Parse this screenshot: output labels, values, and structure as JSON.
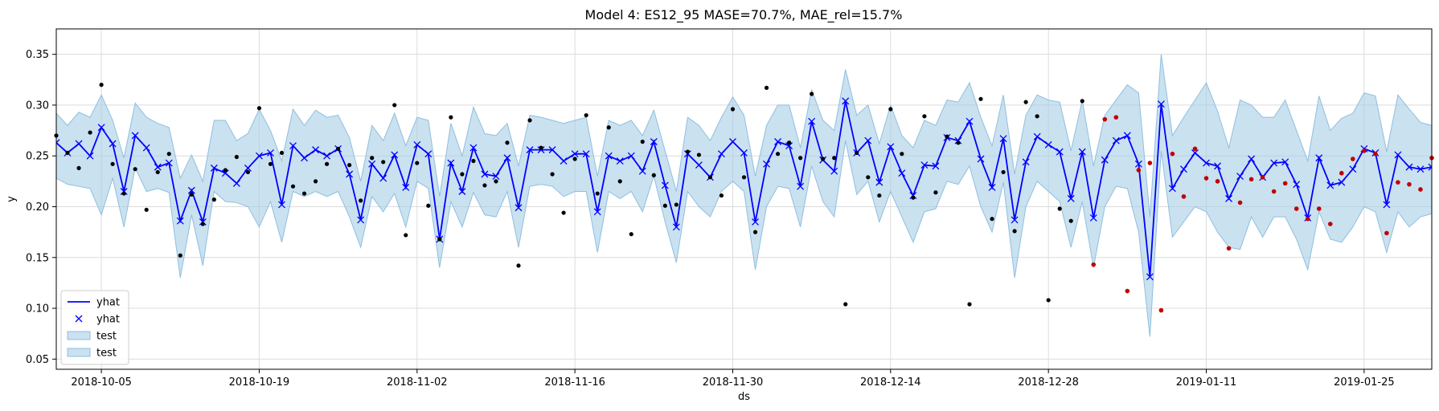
{
  "chart_data": {
    "type": "line",
    "title": "Model 4: ES12_95 MASE=70.7%, MAE_rel=15.7%",
    "xlabel": "ds",
    "ylabel": "y",
    "xlim": [
      "2018-10-01",
      "2019-01-31"
    ],
    "ylim": [
      0.04,
      0.375
    ],
    "x_ticks": [
      "2018-10-05",
      "2018-10-19",
      "2018-11-02",
      "2018-11-16",
      "2018-11-30",
      "2018-12-14",
      "2018-12-28",
      "2019-01-11",
      "2019-01-25"
    ],
    "y_ticks": [
      "0.05",
      "0.10",
      "0.15",
      "0.20",
      "0.25",
      "0.30",
      "0.35"
    ],
    "grid": true,
    "legend_position": "bottom-left",
    "colors": {
      "yhat": "#0000ff",
      "band": "#a6cde6",
      "band_edge": "#8fbfdf",
      "actual": "#000000",
      "test_actual": "#c00000"
    },
    "forecast_start": "2018-10-01",
    "yhat": [
      0.263,
      0.253,
      0.262,
      0.25,
      0.278,
      0.262,
      0.215,
      0.27,
      0.258,
      0.239,
      0.243,
      0.186,
      0.216,
      0.185,
      0.238,
      0.233,
      0.223,
      0.238,
      0.25,
      0.253,
      0.202,
      0.26,
      0.248,
      0.256,
      0.25,
      0.257,
      0.232,
      0.187,
      0.242,
      0.228,
      0.251,
      0.219,
      0.261,
      0.252,
      0.168,
      0.243,
      0.215,
      0.258,
      0.232,
      0.23,
      0.248,
      0.199,
      0.256,
      0.256,
      0.256,
      0.245,
      0.252,
      0.252,
      0.195,
      0.25,
      0.245,
      0.25,
      0.235,
      0.264,
      0.221,
      0.18,
      0.252,
      0.241,
      0.229,
      0.252,
      0.264,
      0.253,
      0.185,
      0.242,
      0.264,
      0.26,
      0.22,
      0.284,
      0.246,
      0.235,
      0.304,
      0.253,
      0.265,
      0.224,
      0.259,
      0.233,
      0.211,
      0.241,
      0.24,
      0.268,
      0.265,
      0.284,
      0.247,
      0.219,
      0.267,
      0.187,
      0.244,
      0.269,
      0.261,
      0.254,
      0.208,
      0.254,
      0.189,
      0.246,
      0.265,
      0.27,
      0.242,
      0.131,
      0.301,
      0.218,
      0.237,
      0.253,
      0.243,
      0.24,
      0.208,
      0.23,
      0.247,
      0.229,
      0.243,
      0.244,
      0.222,
      0.189,
      0.248,
      0.221,
      0.224,
      0.237,
      0.257,
      0.253,
      0.202,
      0.251,
      0.239,
      0.237,
      0.239
    ],
    "band_upper": [
      0.292,
      0.28,
      0.293,
      0.288,
      0.31,
      0.285,
      0.248,
      0.302,
      0.288,
      0.282,
      0.278,
      0.228,
      0.251,
      0.225,
      0.285,
      0.285,
      0.265,
      0.272,
      0.296,
      0.275,
      0.245,
      0.296,
      0.28,
      0.295,
      0.288,
      0.29,
      0.268,
      0.225,
      0.28,
      0.265,
      0.292,
      0.26,
      0.288,
      0.285,
      0.21,
      0.282,
      0.25,
      0.298,
      0.272,
      0.27,
      0.282,
      0.24,
      0.29,
      0.288,
      0.285,
      0.282,
      0.285,
      0.288,
      0.23,
      0.285,
      0.28,
      0.285,
      0.27,
      0.295,
      0.255,
      0.215,
      0.288,
      0.28,
      0.265,
      0.288,
      0.308,
      0.29,
      0.23,
      0.28,
      0.3,
      0.3,
      0.258,
      0.315,
      0.285,
      0.275,
      0.335,
      0.29,
      0.3,
      0.262,
      0.3,
      0.27,
      0.258,
      0.285,
      0.28,
      0.305,
      0.303,
      0.322,
      0.288,
      0.26,
      0.31,
      0.232,
      0.29,
      0.31,
      0.305,
      0.303,
      0.255,
      0.305,
      0.24,
      0.29,
      0.305,
      0.32,
      0.312,
      0.19,
      0.35,
      0.27,
      0.288,
      0.305,
      0.322,
      0.294,
      0.258,
      0.305,
      0.3,
      0.288,
      0.288,
      0.305,
      0.275,
      0.245,
      0.309,
      0.275,
      0.287,
      0.292,
      0.312,
      0.309,
      0.254,
      0.31,
      0.296,
      0.283,
      0.28
    ],
    "band_lower": [
      0.228,
      0.222,
      0.22,
      0.218,
      0.192,
      0.228,
      0.18,
      0.238,
      0.215,
      0.218,
      0.214,
      0.13,
      0.192,
      0.142,
      0.215,
      0.205,
      0.204,
      0.2,
      0.18,
      0.205,
      0.165,
      0.215,
      0.21,
      0.215,
      0.21,
      0.215,
      0.19,
      0.16,
      0.21,
      0.195,
      0.213,
      0.18,
      0.225,
      0.218,
      0.14,
      0.205,
      0.18,
      0.214,
      0.192,
      0.19,
      0.215,
      0.16,
      0.22,
      0.222,
      0.22,
      0.21,
      0.215,
      0.215,
      0.155,
      0.215,
      0.208,
      0.215,
      0.195,
      0.23,
      0.185,
      0.145,
      0.215,
      0.2,
      0.19,
      0.215,
      0.225,
      0.215,
      0.138,
      0.2,
      0.22,
      0.218,
      0.18,
      0.24,
      0.205,
      0.19,
      0.265,
      0.212,
      0.225,
      0.185,
      0.215,
      0.19,
      0.165,
      0.195,
      0.198,
      0.225,
      0.222,
      0.24,
      0.2,
      0.175,
      0.224,
      0.13,
      0.2,
      0.225,
      0.215,
      0.205,
      0.16,
      0.205,
      0.14,
      0.2,
      0.22,
      0.218,
      0.175,
      0.072,
      0.255,
      0.17,
      0.185,
      0.2,
      0.195,
      0.175,
      0.16,
      0.158,
      0.19,
      0.17,
      0.19,
      0.19,
      0.168,
      0.138,
      0.195,
      0.168,
      0.165,
      0.18,
      0.2,
      0.195,
      0.155,
      0.195,
      0.18,
      0.19,
      0.193
    ],
    "actual": [
      [
        "2018-10-01",
        0.27
      ],
      [
        "2018-10-02",
        0.253
      ],
      [
        "2018-10-03",
        0.238
      ],
      [
        "2018-10-04",
        0.273
      ],
      [
        "2018-10-05",
        0.32
      ],
      [
        "2018-10-06",
        0.242
      ],
      [
        "2018-10-07",
        0.213
      ],
      [
        "2018-10-08",
        0.237
      ],
      [
        "2018-10-09",
        0.197
      ],
      [
        "2018-10-10",
        0.234
      ],
      [
        "2018-10-11",
        0.252
      ],
      [
        "2018-10-12",
        0.152
      ],
      [
        "2018-10-13",
        0.212
      ],
      [
        "2018-10-14",
        0.183
      ],
      [
        "2018-10-15",
        0.207
      ],
      [
        "2018-10-16",
        0.236
      ],
      [
        "2018-10-17",
        0.249
      ],
      [
        "2018-10-18",
        0.234
      ],
      [
        "2018-10-19",
        0.297
      ],
      [
        "2018-10-20",
        0.242
      ],
      [
        "2018-10-21",
        0.253
      ],
      [
        "2018-10-22",
        0.22
      ],
      [
        "2018-10-23",
        0.213
      ],
      [
        "2018-10-24",
        0.225
      ],
      [
        "2018-10-25",
        0.242
      ],
      [
        "2018-10-26",
        0.257
      ],
      [
        "2018-10-27",
        0.241
      ],
      [
        "2018-10-28",
        0.206
      ],
      [
        "2018-10-29",
        0.248
      ],
      [
        "2018-10-30",
        0.244
      ],
      [
        "2018-10-31",
        0.3
      ],
      [
        "2018-11-01",
        0.172
      ],
      [
        "2018-11-02",
        0.243
      ],
      [
        "2018-11-03",
        0.201
      ],
      [
        "2018-11-04",
        0.168
      ],
      [
        "2018-11-05",
        0.288
      ],
      [
        "2018-11-06",
        0.232
      ],
      [
        "2018-11-07",
        0.245
      ],
      [
        "2018-11-08",
        0.221
      ],
      [
        "2018-11-09",
        0.225
      ],
      [
        "2018-11-10",
        0.263
      ],
      [
        "2018-11-11",
        0.142
      ],
      [
        "2018-11-12",
        0.285
      ],
      [
        "2018-11-13",
        0.258
      ],
      [
        "2018-11-14",
        0.232
      ],
      [
        "2018-11-15",
        0.194
      ],
      [
        "2018-11-16",
        0.247
      ],
      [
        "2018-11-17",
        0.29
      ],
      [
        "2018-11-18",
        0.213
      ],
      [
        "2018-11-19",
        0.278
      ],
      [
        "2018-11-20",
        0.225
      ],
      [
        "2018-11-21",
        0.173
      ],
      [
        "2018-11-22",
        0.264
      ],
      [
        "2018-11-23",
        0.231
      ],
      [
        "2018-11-24",
        0.201
      ],
      [
        "2018-11-25",
        0.202
      ],
      [
        "2018-11-26",
        0.254
      ],
      [
        "2018-11-27",
        0.251
      ],
      [
        "2018-11-28",
        0.229
      ],
      [
        "2018-11-29",
        0.211
      ],
      [
        "2018-11-30",
        0.296
      ],
      [
        "2018-12-01",
        0.229
      ],
      [
        "2018-12-02",
        0.175
      ],
      [
        "2018-12-03",
        0.317
      ],
      [
        "2018-12-04",
        0.252
      ],
      [
        "2018-12-05",
        0.263
      ],
      [
        "2018-12-06",
        0.248
      ],
      [
        "2018-12-07",
        0.311
      ],
      [
        "2018-12-08",
        0.247
      ],
      [
        "2018-12-09",
        0.248
      ],
      [
        "2018-12-10",
        0.104
      ],
      [
        "2018-12-11",
        0.253
      ],
      [
        "2018-12-12",
        0.229
      ],
      [
        "2018-12-13",
        0.211
      ],
      [
        "2018-12-14",
        0.296
      ],
      [
        "2018-12-15",
        0.252
      ],
      [
        "2018-12-16",
        0.209
      ],
      [
        "2018-12-17",
        0.289
      ],
      [
        "2018-12-18",
        0.214
      ],
      [
        "2018-12-19",
        0.269
      ],
      [
        "2018-12-20",
        0.263
      ],
      [
        "2018-12-21",
        0.104
      ],
      [
        "2018-12-22",
        0.306
      ],
      [
        "2018-12-23",
        0.188
      ],
      [
        "2018-12-24",
        0.234
      ],
      [
        "2018-12-25",
        0.176
      ],
      [
        "2018-12-26",
        0.303
      ],
      [
        "2018-12-27",
        0.289
      ],
      [
        "2018-12-28",
        0.108
      ],
      [
        "2018-12-29",
        0.198
      ],
      [
        "2018-12-30",
        0.186
      ],
      [
        "2018-12-31",
        0.304
      ]
    ],
    "test_actual": [
      [
        "2019-01-01",
        0.143
      ],
      [
        "2019-01-02",
        0.286
      ],
      [
        "2019-01-03",
        0.288
      ],
      [
        "2019-01-04",
        0.117
      ],
      [
        "2019-01-05",
        0.236
      ],
      [
        "2019-01-06",
        0.243
      ],
      [
        "2019-01-07",
        0.098
      ],
      [
        "2019-01-08",
        0.252
      ],
      [
        "2019-01-09",
        0.21
      ],
      [
        "2019-01-10",
        0.257
      ],
      [
        "2019-01-11",
        0.228
      ],
      [
        "2019-01-12",
        0.225
      ],
      [
        "2019-01-13",
        0.159
      ],
      [
        "2019-01-14",
        0.204
      ],
      [
        "2019-01-15",
        0.227
      ],
      [
        "2019-01-16",
        0.229
      ],
      [
        "2019-01-17",
        0.215
      ],
      [
        "2019-01-18",
        0.223
      ],
      [
        "2019-01-19",
        0.198
      ],
      [
        "2019-01-20",
        0.188
      ],
      [
        "2019-01-21",
        0.198
      ],
      [
        "2019-01-22",
        0.183
      ],
      [
        "2019-01-23",
        0.233
      ],
      [
        "2019-01-24",
        0.247
      ],
      [
        "2019-01-25",
        0.255
      ],
      [
        "2019-01-26",
        0.252
      ],
      [
        "2019-01-27",
        0.174
      ],
      [
        "2019-01-28",
        0.224
      ],
      [
        "2019-01-29",
        0.222
      ],
      [
        "2019-01-30",
        0.217
      ],
      [
        "2019-01-31",
        0.248
      ]
    ],
    "legend": [
      {
        "label": "yhat",
        "marker": "line"
      },
      {
        "label": "yhat",
        "marker": "x"
      },
      {
        "label": "test",
        "marker": "patch"
      },
      {
        "label": "test",
        "marker": "patch"
      }
    ]
  }
}
